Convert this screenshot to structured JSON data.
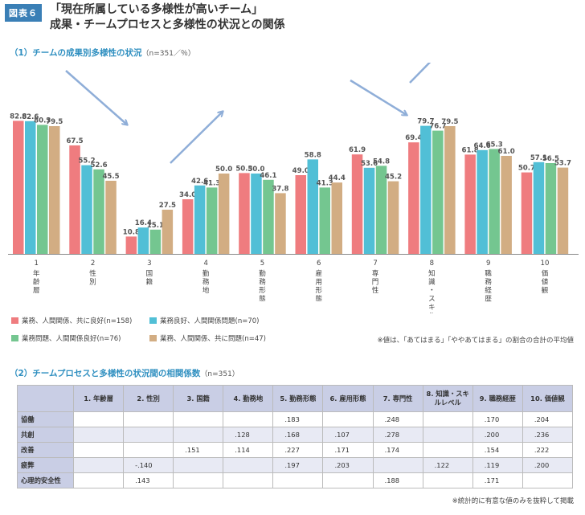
{
  "figure_label": "図表６",
  "title_line1": "「現在所属している多様性が高いチーム」",
  "title_line2": "成果・チームプロセスと多様性の状況との関係",
  "section1": {
    "title": "（1）チームの成果別多様性の状況",
    "note": "（n=351／％）"
  },
  "section2": {
    "title": "（2）チームプロセスと多様性の状況間の相関係数",
    "note": "（n=351）"
  },
  "colors": {
    "s1": "#ef7c7f",
    "s2": "#51bfd6",
    "s3": "#74c690",
    "s4": "#d2ad83",
    "arrow": "#8faed8",
    "badge": "#3a7fb6",
    "section": "#2f8fc0"
  },
  "chart_data": {
    "type": "bar",
    "ylim": [
      0,
      100
    ],
    "categories": [
      {
        "num": "1",
        "label": "年齢層"
      },
      {
        "num": "2",
        "label": "性別"
      },
      {
        "num": "3",
        "label": "国籍"
      },
      {
        "num": "4",
        "label": "勤務地"
      },
      {
        "num": "5",
        "label": "勤務形態"
      },
      {
        "num": "6",
        "label": "雇用形態"
      },
      {
        "num": "7",
        "label": "専門性"
      },
      {
        "num": "8",
        "label": "知識・スキルレベル"
      },
      {
        "num": "9",
        "label": "職務経歴"
      },
      {
        "num": "10",
        "label": "価値観"
      }
    ],
    "series": [
      {
        "name": "業務、人間関係、共に良好(n=158)",
        "values": [
          82.8,
          67.5,
          10.8,
          34.0,
          50.3,
          49.0,
          61.9,
          69.4,
          61.8,
          50.7
        ]
      },
      {
        "name": "業務良好、人間関係問題(n=70)",
        "values": [
          82.6,
          55.2,
          16.4,
          42.6,
          50.0,
          58.8,
          53.6,
          79.7,
          64.6,
          57.1
        ]
      },
      {
        "name": "業務問題、人間関係良好(n=76)",
        "values": [
          80.3,
          52.6,
          15.1,
          41.3,
          46.1,
          41.3,
          54.8,
          76.7,
          65.3,
          56.5
        ]
      },
      {
        "name": "業務、人間関係、共に問題(n=47)",
        "values": [
          79.5,
          45.5,
          27.5,
          50.0,
          37.8,
          44.4,
          45.2,
          79.5,
          61.0,
          53.7
        ]
      }
    ]
  },
  "chart_note": "※値は、「あてはまる」「ややあてはまる」の割合の合計の平均値",
  "table": {
    "headers": [
      "",
      "1. 年齢層",
      "2. 性別",
      "3. 国籍",
      "4. 勤務地",
      "5. 勤務形態",
      "6. 雇用形態",
      "7. 専門性",
      "8. 知識・スキルレベル",
      "9. 職務経歴",
      "10. 価値観"
    ],
    "rows": [
      {
        "label": "協働",
        "cells": [
          "",
          "",
          "",
          "",
          ".183",
          "",
          ".248",
          "",
          ".170",
          ".204"
        ]
      },
      {
        "label": "共創",
        "cells": [
          "",
          "",
          "",
          ".128",
          ".168",
          ".107",
          ".278",
          "",
          ".200",
          ".236"
        ]
      },
      {
        "label": "改善",
        "cells": [
          "",
          "",
          ".151",
          ".114",
          ".227",
          ".171",
          ".174",
          "",
          ".154",
          ".222"
        ]
      },
      {
        "label": "疲弊",
        "cells": [
          "",
          "-.140",
          "",
          "",
          ".197",
          ".203",
          "",
          ".122",
          ".119",
          ".200"
        ]
      },
      {
        "label": "心理的安全性",
        "cells": [
          "",
          ".143",
          "",
          "",
          "",
          "",
          ".188",
          "",
          ".171",
          ""
        ]
      }
    ]
  },
  "table_note": "※統計的に有意な値のみを抜粋して掲載"
}
